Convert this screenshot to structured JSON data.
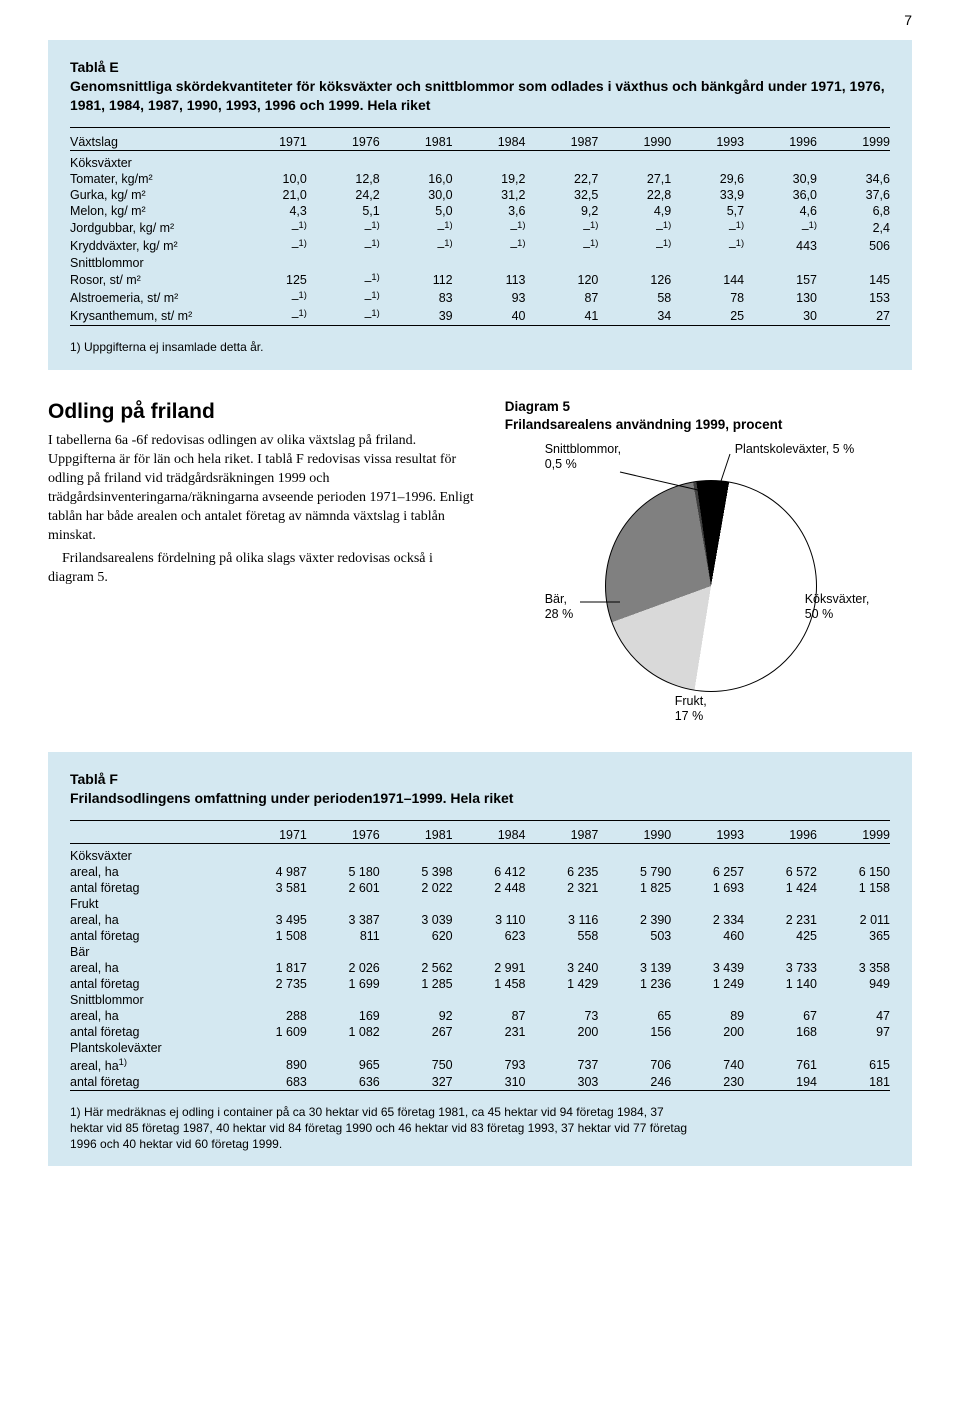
{
  "page_number": "7",
  "tabla_e": {
    "title": "Tablå E\nGenomsnittliga skördekvantiteter för köksväxter och snittblommor som odlades i växthus och bänkgård under 1971, 1976, 1981, 1984, 1987, 1990, 1993, 1996 och 1999. Hela riket",
    "col_label": "Växtslag",
    "years": [
      "1971",
      "1976",
      "1981",
      "1984",
      "1987",
      "1990",
      "1993",
      "1996",
      "1999"
    ],
    "background": "#d4e8f1",
    "groups": [
      {
        "head": "Köksväxter",
        "rows": [
          {
            "label": "Tomater, kg/m²",
            "vals": [
              "10,0",
              "12,8",
              "16,0",
              "19,2",
              "22,7",
              "27,1",
              "29,6",
              "30,9",
              "34,6"
            ]
          },
          {
            "label": "Gurka, kg/ m²",
            "vals": [
              "21,0",
              "24,2",
              "30,0",
              "31,2",
              "32,5",
              "22,8",
              "33,9",
              "36,0",
              "37,6"
            ]
          },
          {
            "label": "Melon, kg/ m²",
            "vals": [
              "4,3",
              "5,1",
              "5,0",
              "3,6",
              "9,2",
              "4,9",
              "5,7",
              "4,6",
              "6,8"
            ]
          },
          {
            "label": "Jordgubbar, kg/ m²",
            "vals": [
              "–¹⁾",
              "–¹⁾",
              "–¹⁾",
              "–¹⁾",
              "–¹⁾",
              "–¹⁾",
              "–¹⁾",
              "–¹⁾",
              "2,4"
            ]
          },
          {
            "label": "Kryddväxter, kg/ m²",
            "vals": [
              "–¹⁾",
              "–¹⁾",
              "–¹⁾",
              "–¹⁾",
              "–¹⁾",
              "–¹⁾",
              "–¹⁾",
              "443",
              "506"
            ]
          }
        ]
      },
      {
        "head": "Snittblommor",
        "rows": [
          {
            "label": "Rosor, st/ m²",
            "vals": [
              "125",
              "–¹⁾",
              "112",
              "113",
              "120",
              "126",
              "144",
              "157",
              "145"
            ]
          },
          {
            "label": "Alstroemeria, st/ m²",
            "vals": [
              "–¹⁾",
              "–¹⁾",
              "83",
              "93",
              "87",
              "58",
              "78",
              "130",
              "153"
            ]
          },
          {
            "label": "Krysanthemum, st/ m²",
            "vals": [
              "–¹⁾",
              "–¹⁾",
              "39",
              "40",
              "41",
              "34",
              "25",
              "30",
              "27"
            ]
          }
        ]
      }
    ],
    "footnote": "1) Uppgifterna ej insamlade detta år."
  },
  "odling": {
    "heading": "Odling på friland",
    "para1": "I tabellerna 6a -6f redovisas odlingen av olika växtslag på friland. Uppgifterna är för län och hela riket. I tablå F redovisas vissa resultat för odling på friland vid trädgårdsräkningen 1999 och trädgårdsinventeringarna/räkningarna avseende perioden 1971–1996. Enligt tablån har både arealen och antalet företag av nämnda växtslag i tablån minskat.",
    "para2": "Frilandsarealens fördelning på olika slags växter redovisas också i diagram 5."
  },
  "diagram5": {
    "title": "Diagram 5\nFrilandsarealens användning 1999, procent",
    "slices": [
      {
        "label": "Köksväxter,\n50 %",
        "pct": 50,
        "color": "#ffffff"
      },
      {
        "label": "Frukt,\n17 %",
        "pct": 17,
        "color": "#d9d9d9"
      },
      {
        "label": "Bär,\n28 %",
        "pct": 28,
        "color": "#808080"
      },
      {
        "label": "Snittblommor,\n0,5 %",
        "pct": 0.5,
        "color": "#404040"
      },
      {
        "label": "Plantskoleväxter, 5 %",
        "pct": 5,
        "color": "#000000"
      }
    ],
    "label_snitt": "Snittblommor,\n0,5 %",
    "label_plant": "Plantskoleväxter, 5 %",
    "label_bar": "Bär,\n28 %",
    "label_koks": "Köksväxter,\n50 %",
    "label_frukt": "Frukt,\n17 %"
  },
  "tabla_f": {
    "title": "Tablå F\nFrilandsodlingens omfattning under perioden1971–1999. Hela riket",
    "years": [
      "1971",
      "1976",
      "1981",
      "1984",
      "1987",
      "1990",
      "1993",
      "1996",
      "1999"
    ],
    "groups": [
      {
        "head": "Köksväxter",
        "rows": [
          {
            "label": "areal, ha",
            "vals": [
              "4 987",
              "5 180",
              "5 398",
              "6 412",
              "6 235",
              "5 790",
              "6 257",
              "6 572",
              "6 150"
            ]
          },
          {
            "label": "antal företag",
            "vals": [
              "3 581",
              "2 601",
              "2 022",
              "2 448",
              "2 321",
              "1 825",
              "1 693",
              "1 424",
              "1 158"
            ]
          }
        ]
      },
      {
        "head": "Frukt",
        "rows": [
          {
            "label": "areal, ha",
            "vals": [
              "3 495",
              "3 387",
              "3 039",
              "3 110",
              "3 116",
              "2 390",
              "2 334",
              "2 231",
              "2 011"
            ]
          },
          {
            "label": "antal företag",
            "vals": [
              "1 508",
              "811",
              "620",
              "623",
              "558",
              "503",
              "460",
              "425",
              "365"
            ]
          }
        ]
      },
      {
        "head": "Bär",
        "rows": [
          {
            "label": "areal, ha",
            "vals": [
              "1 817",
              "2 026",
              "2 562",
              "2 991",
              "3 240",
              "3 139",
              "3 439",
              "3 733",
              "3 358"
            ]
          },
          {
            "label": "antal företag",
            "vals": [
              "2 735",
              "1 699",
              "1 285",
              "1 458",
              "1 429",
              "1 236",
              "1 249",
              "1 140",
              "949"
            ]
          }
        ]
      },
      {
        "head": "Snittblommor",
        "rows": [
          {
            "label": "areal, ha",
            "vals": [
              "288",
              "169",
              "92",
              "87",
              "73",
              "65",
              "89",
              "67",
              "47"
            ]
          },
          {
            "label": "antal företag",
            "vals": [
              "1 609",
              "1 082",
              "267",
              "231",
              "200",
              "156",
              "200",
              "168",
              "97"
            ]
          }
        ]
      },
      {
        "head": "Plantskoleväxter",
        "rows": [
          {
            "label": "areal, ha¹⁾",
            "vals": [
              "890",
              "965",
              "750",
              "793",
              "737",
              "706",
              "740",
              "761",
              "615"
            ]
          },
          {
            "label": "antal företag",
            "vals": [
              "683",
              "636",
              "327",
              "310",
              "303",
              "246",
              "230",
              "194",
              "181"
            ]
          }
        ]
      }
    ],
    "footnote": "1) Här medräknas ej odling i container på ca 30 hektar vid 65 företag 1981, ca 45 hektar vid 94 företag 1984, 37 hektar vid 85 företag 1987, 40 hektar vid 84 företag 1990 och 46 hektar vid 83 företag 1993, 37 hektar vid 77 företag 1996 och 40 hektar vid 60 företag 1999."
  }
}
